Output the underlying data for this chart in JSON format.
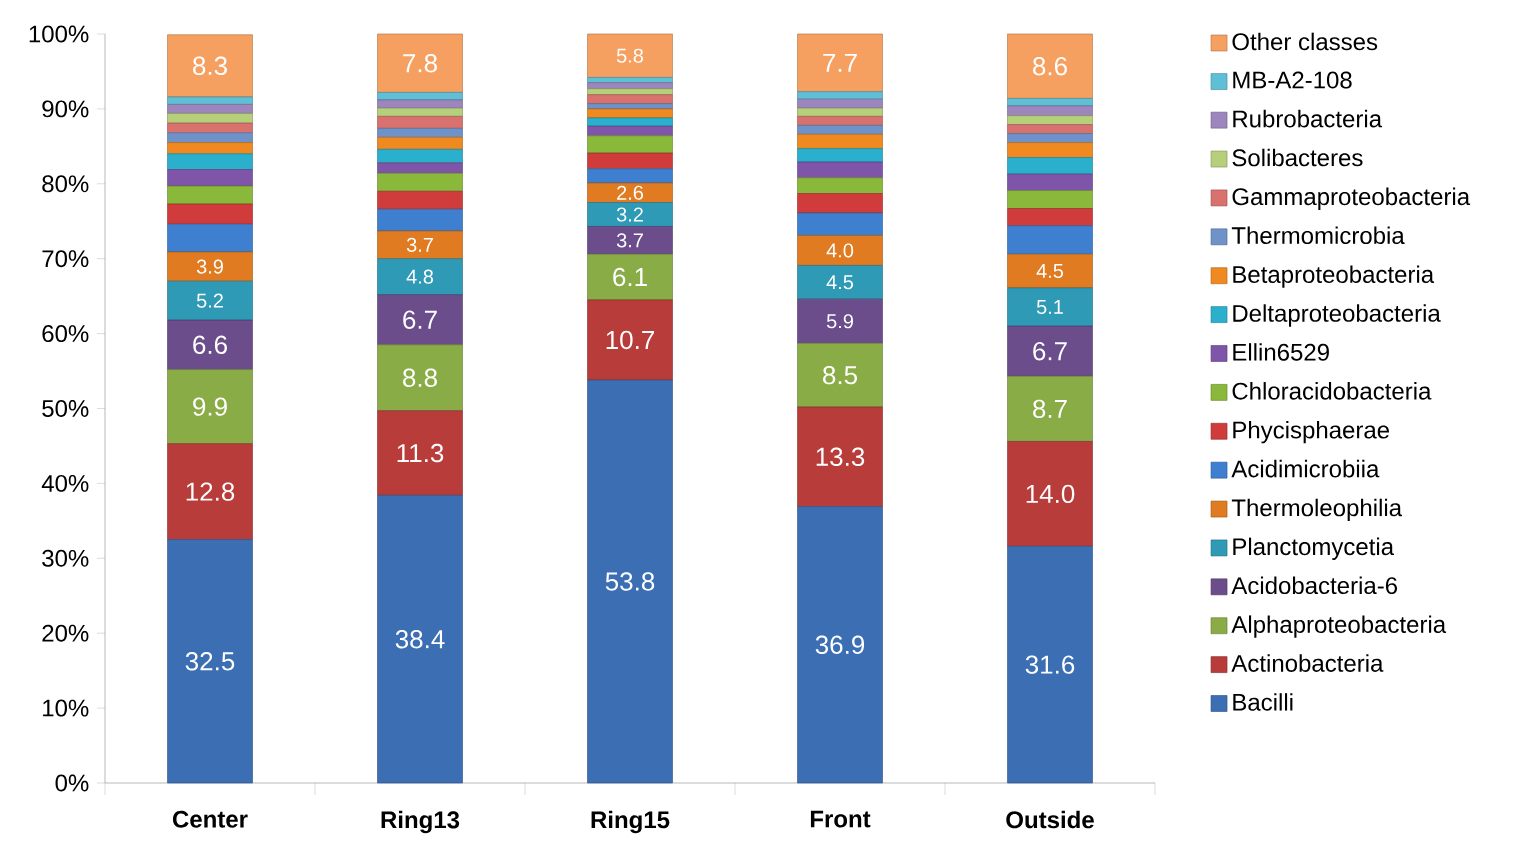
{
  "chart_data": {
    "type": "bar",
    "stacked": true,
    "legend": "right",
    "grid": false,
    "categories": [
      "Center",
      "Ring13",
      "Ring15",
      "Front",
      "Outside"
    ],
    "ylim": [
      0,
      100
    ],
    "yticks": [
      {
        "value": 0,
        "label": "0%"
      },
      {
        "value": 10,
        "label": "10%"
      },
      {
        "value": 20,
        "label": "20%"
      },
      {
        "value": 30,
        "label": "30%"
      },
      {
        "value": 40,
        "label": "40%"
      },
      {
        "value": 50,
        "label": "50%"
      },
      {
        "value": 60,
        "label": "60%"
      },
      {
        "value": 70,
        "label": "70%"
      },
      {
        "value": 80,
        "label": "80%"
      },
      {
        "value": 90,
        "label": "90%"
      },
      {
        "value": 100,
        "label": "100%"
      }
    ],
    "series": [
      {
        "name": "Bacilli",
        "color": "#3c6eb4",
        "values": [
          32.5,
          38.4,
          53.8,
          36.9,
          31.6
        ],
        "value_labels": [
          "32.5",
          "38.4",
          "53.8",
          "36.9",
          "31.6"
        ]
      },
      {
        "name": "Actinobacteria",
        "color": "#b83c3a",
        "values": [
          12.8,
          11.3,
          10.7,
          13.3,
          14.0
        ],
        "value_labels": [
          "12.8",
          "11.3",
          "10.7",
          "13.3",
          "14.0"
        ]
      },
      {
        "name": "Alphaproteobacteria",
        "color": "#8aac46",
        "values": [
          9.9,
          8.8,
          6.1,
          8.5,
          8.7
        ],
        "value_labels": [
          "9.9",
          "8.8",
          "6.1",
          "8.5",
          "8.7"
        ]
      },
      {
        "name": "Acidobacteria-6",
        "color": "#6b4d8c",
        "values": [
          6.6,
          6.7,
          3.7,
          5.9,
          6.7
        ],
        "value_labels": [
          "6.6",
          "6.7",
          "3.7",
          "5.9",
          "6.7"
        ]
      },
      {
        "name": "Planctomycetia",
        "color": "#2e9ab5",
        "values": [
          5.2,
          4.8,
          3.2,
          4.5,
          5.1
        ],
        "value_labels": [
          "5.2",
          "4.8",
          "3.2",
          "4.5",
          "5.1"
        ]
      },
      {
        "name": "Thermoleophilia",
        "color": "#e07b22",
        "values": [
          3.9,
          3.7,
          2.6,
          4.0,
          4.5
        ],
        "value_labels": [
          "3.9",
          "3.7",
          "2.6",
          "4.0",
          "4.5"
        ]
      },
      {
        "name": "Acidimicrobiia",
        "color": "#3f7fd0",
        "values": [
          3.7,
          2.9,
          1.9,
          3.0,
          3.8
        ]
      },
      {
        "name": "Phycisphaerae",
        "color": "#d03b3b",
        "values": [
          2.7,
          2.4,
          2.1,
          2.6,
          2.3
        ]
      },
      {
        "name": "Chloracidobacteria",
        "color": "#8ab83a",
        "values": [
          2.4,
          2.4,
          2.3,
          2.1,
          2.4
        ]
      },
      {
        "name": "Ellin6529",
        "color": "#7e55a8",
        "values": [
          2.2,
          1.4,
          1.3,
          2.1,
          2.2
        ]
      },
      {
        "name": "Deltaproteobacteria",
        "color": "#2ab0cc",
        "values": [
          2.1,
          1.8,
          1.1,
          1.8,
          2.2
        ]
      },
      {
        "name": "Betaproteobacteria",
        "color": "#f08a20",
        "values": [
          1.5,
          1.6,
          1.2,
          1.9,
          2.0
        ]
      },
      {
        "name": "Thermomicrobia",
        "color": "#6f92c8",
        "values": [
          1.3,
          1.2,
          0.7,
          1.2,
          1.2
        ]
      },
      {
        "name": "Gammaproteobacteria",
        "color": "#d9716f",
        "values": [
          1.3,
          1.6,
          1.2,
          1.2,
          1.2
        ]
      },
      {
        "name": "Solibacteres",
        "color": "#b5cf7a",
        "values": [
          1.3,
          1.1,
          0.8,
          1.1,
          1.2
        ]
      },
      {
        "name": "Rubrobacteria",
        "color": "#9c86bd",
        "values": [
          1.2,
          1.1,
          0.8,
          1.2,
          1.3
        ]
      },
      {
        "name": "MB-A2-108",
        "color": "#5fbfd6",
        "values": [
          1.0,
          1.0,
          0.7,
          1.0,
          1.0
        ]
      },
      {
        "name": "Other classes",
        "color": "#f5a060",
        "values": [
          8.3,
          7.8,
          5.8,
          7.7,
          8.6
        ],
        "value_labels": [
          "8.3",
          "7.8",
          "5.8",
          "7.7",
          "8.6"
        ]
      }
    ]
  }
}
